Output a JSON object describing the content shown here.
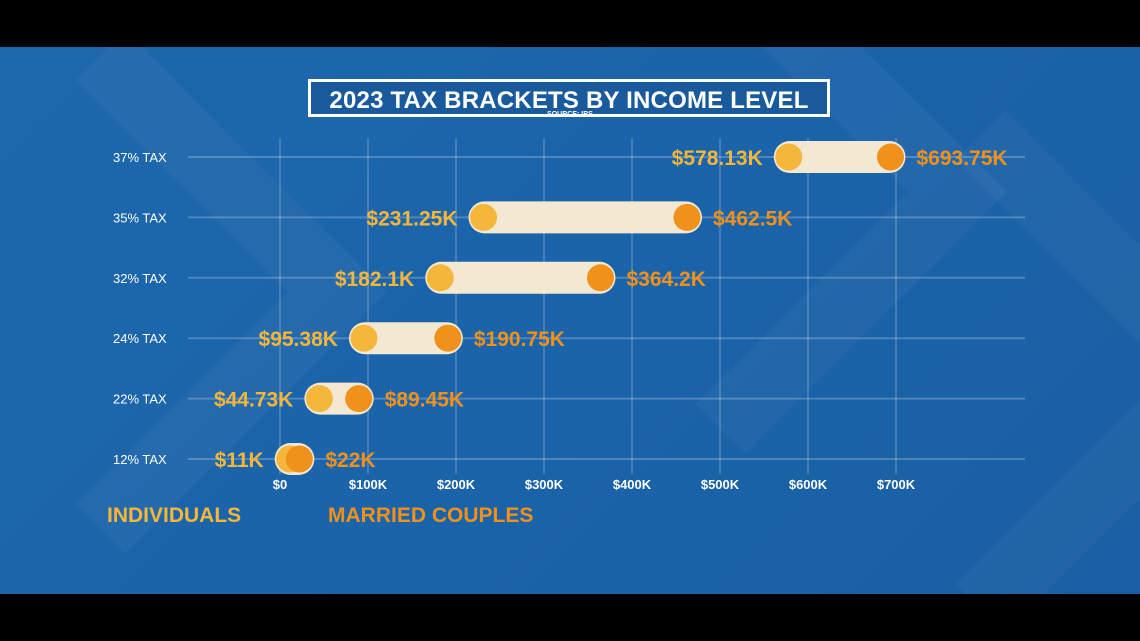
{
  "title": "2023 TAX BRACKETS BY INCOME LEVEL",
  "source": "SOURCE: IRS",
  "legend": {
    "individuals": "INDIVIDUALS",
    "married": "MARRIED COUPLES"
  },
  "colors": {
    "background": "#1b64aa",
    "individuals": "#f4b63b",
    "married": "#f0911c",
    "bar": "#f3e8d2",
    "text": "#ffffff"
  },
  "chart_data": {
    "type": "dumbbell",
    "xlim": [
      0,
      700000
    ],
    "x_ticks": [
      {
        "value": 0,
        "label": "$0"
      },
      {
        "value": 100000,
        "label": "$100K"
      },
      {
        "value": 200000,
        "label": "$200K"
      },
      {
        "value": 300000,
        "label": "$300K"
      },
      {
        "value": 400000,
        "label": "$400K"
      },
      {
        "value": 500000,
        "label": "$500K"
      },
      {
        "value": 600000,
        "label": "$600K"
      },
      {
        "value": 700000,
        "label": "$700K"
      }
    ],
    "categories": [
      "37% TAX",
      "35% TAX",
      "32% TAX",
      "24% TAX",
      "22% TAX",
      "12% TAX"
    ],
    "series": [
      {
        "name": "INDIVIDUALS",
        "values": [
          578130,
          231250,
          182100,
          95380,
          44730,
          11000
        ],
        "labels": [
          "$578.13K",
          "$231.25K",
          "$182.1K",
          "$95.38K",
          "$44.73K",
          "$11K"
        ]
      },
      {
        "name": "MARRIED COUPLES",
        "values": [
          693750,
          462500,
          364200,
          190750,
          89450,
          22000
        ],
        "labels": [
          "$693.75K",
          "$462.5K",
          "$364.2K",
          "$190.75K",
          "$89.45K",
          "$22K"
        ]
      }
    ],
    "grid": true
  }
}
